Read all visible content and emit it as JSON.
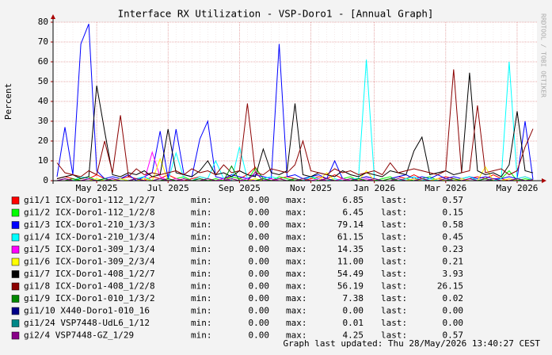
{
  "chart_data": {
    "type": "line",
    "title": "Interface RX Utilization - VSP-Doro1 - [Annual Graph]",
    "y_label": "Percent",
    "watermark": "RRDTOOL / TOBI OETIKER",
    "footer": "Graph last updated: Thu 28/May/2026 13:40:27 CEST",
    "stat_labels": {
      "min": "min:",
      "max": "max:",
      "last": "last:"
    },
    "ylim": [
      0,
      80
    ],
    "yticks": [
      0,
      10,
      20,
      30,
      40,
      50,
      60,
      70,
      80
    ],
    "grid": true,
    "categories": [
      null,
      null,
      null,
      null,
      null,
      "May 2025",
      null,
      null,
      null,
      null,
      null,
      null,
      null,
      null,
      "Jul 2025",
      null,
      null,
      null,
      null,
      null,
      null,
      null,
      null,
      "Sep 2025",
      null,
      null,
      null,
      null,
      null,
      null,
      null,
      null,
      "Nov 2025",
      null,
      null,
      null,
      null,
      null,
      null,
      null,
      "Jan 2026",
      null,
      null,
      null,
      null,
      null,
      null,
      null,
      null,
      "Mar 2026",
      null,
      null,
      null,
      null,
      null,
      null,
      null,
      null,
      "May 2026",
      null,
      null
    ],
    "series": [
      {
        "name": "gi1/1 ICX-Doro1-112_1/2/7",
        "color": "#ff0000",
        "min": "0.00",
        "max": "6.85",
        "last": "0.57",
        "values": [
          1,
          2,
          1,
          0,
          1,
          3,
          1,
          0,
          1,
          2,
          1,
          0,
          2,
          1,
          3,
          1,
          0,
          1,
          2,
          1,
          0,
          1,
          2,
          1,
          3,
          6.85,
          1,
          0,
          1,
          2,
          1,
          0,
          1,
          2,
          1,
          3,
          1,
          0,
          1,
          2,
          1,
          0,
          1,
          2,
          1,
          3,
          1,
          0,
          1,
          2,
          1,
          0,
          1,
          2,
          1,
          3,
          1,
          0,
          1,
          2,
          0.57
        ]
      },
      {
        "name": "gi1/2 ICX-Doro1-112_1/2/8",
        "color": "#00ff00",
        "min": "0.00",
        "max": "6.45",
        "last": "0.15",
        "values": [
          0,
          1,
          0,
          1,
          2,
          0,
          1,
          0,
          1,
          0,
          1,
          2,
          0,
          1,
          0,
          1,
          2,
          0,
          1,
          0,
          1,
          0,
          2,
          1,
          0,
          6.45,
          1,
          0,
          2,
          1,
          0,
          1,
          2,
          0,
          1,
          0,
          1,
          2,
          0,
          1,
          0,
          1,
          2,
          0,
          1,
          0,
          1,
          2,
          0,
          1,
          0,
          1,
          2,
          0,
          1,
          0,
          1,
          5,
          0,
          1,
          0.15
        ]
      },
      {
        "name": "gi1/3 ICX-Doro1-210_1/3/3",
        "color": "#0000ff",
        "min": "0.00",
        "max": "79.14",
        "last": "0.58",
        "values": [
          2,
          27,
          3,
          69,
          79.14,
          5,
          1,
          2,
          1,
          3,
          0,
          2,
          4,
          25,
          1,
          26,
          3,
          2,
          21,
          30,
          2,
          1,
          3,
          2,
          1,
          3,
          2,
          1,
          69,
          2,
          3,
          1,
          2,
          3,
          1,
          10,
          1,
          0,
          1,
          2,
          1,
          0,
          1,
          2,
          3,
          1,
          2,
          1,
          3,
          1,
          2,
          1,
          2,
          1,
          2,
          1,
          1,
          2,
          1,
          30,
          0.58
        ]
      },
      {
        "name": "gi1/4 ICX-Doro1-210_1/3/4",
        "color": "#00ffff",
        "min": "0.00",
        "max": "61.15",
        "last": "0.45",
        "values": [
          0,
          1,
          0,
          2,
          1,
          0,
          1,
          0,
          1,
          0,
          1,
          2,
          0,
          1,
          0,
          14,
          1,
          0,
          2,
          1,
          10,
          1,
          0,
          17,
          1,
          0,
          1,
          2,
          1,
          0,
          1,
          0,
          2,
          1,
          0,
          1,
          0,
          1,
          1,
          61.15,
          1,
          0,
          1,
          0,
          1,
          2,
          0,
          1,
          0,
          1,
          0,
          1,
          2,
          0,
          1,
          0,
          1,
          60,
          1,
          2,
          0.45
        ]
      },
      {
        "name": "gi1/5 ICX-Doro1-309_1/3/4",
        "color": "#ff00ff",
        "min": "0.00",
        "max": "14.35",
        "last": "0.23",
        "values": [
          0,
          1,
          0,
          0,
          1,
          0,
          0,
          1,
          0,
          0,
          1,
          0,
          14.35,
          2,
          0,
          1,
          0,
          0,
          1,
          0,
          0,
          1,
          0,
          0,
          1,
          0,
          0,
          1,
          0,
          0,
          1,
          0,
          0,
          1,
          0,
          0,
          1,
          0,
          0,
          1,
          0,
          0,
          1,
          0,
          0,
          1,
          0,
          0,
          1,
          0,
          0,
          1,
          0,
          0,
          1,
          0,
          0,
          1,
          0,
          0,
          0.23
        ]
      },
      {
        "name": "gi1/6 ICX-Doro1-309_2/3/4",
        "color": "#ffff00",
        "min": "0.00",
        "max": "11.00",
        "last": "0.21",
        "values": [
          0,
          0,
          1,
          0,
          0,
          1,
          0,
          0,
          1,
          0,
          0,
          1,
          0,
          11,
          0,
          0,
          1,
          0,
          0,
          1,
          0,
          0,
          1,
          0,
          0,
          1,
          0,
          0,
          1,
          0,
          0,
          1,
          0,
          0,
          4,
          0,
          0,
          1,
          0,
          5,
          0,
          0,
          1,
          0,
          0,
          1,
          0,
          0,
          1,
          0,
          0,
          1,
          0,
          0,
          7,
          0,
          0,
          1,
          0,
          0,
          0.21
        ]
      },
      {
        "name": "gi1/7 ICX-Doro1-408_1/2/7",
        "color": "#000000",
        "min": "0.00",
        "max": "54.49",
        "last": "3.93",
        "values": [
          1,
          2,
          3,
          1,
          2,
          48,
          25,
          3,
          2,
          4,
          3,
          5,
          2,
          3,
          26,
          4,
          3,
          2,
          5,
          10,
          3,
          4,
          2,
          5,
          3,
          2,
          16,
          4,
          3,
          5,
          39,
          3,
          2,
          4,
          3,
          2,
          5,
          3,
          2,
          4,
          3,
          2,
          5,
          4,
          3,
          15,
          22,
          3,
          4,
          5,
          3,
          4,
          54.49,
          5,
          3,
          4,
          2,
          8,
          35,
          5,
          3.93
        ]
      },
      {
        "name": "gi1/8 ICX-Doro1-408_1/2/8",
        "color": "#8b0000",
        "min": "0.00",
        "max": "56.19",
        "last": "26.15",
        "values": [
          9,
          4,
          3,
          2,
          5,
          3,
          20,
          4,
          33,
          2,
          6,
          3,
          4,
          3,
          4,
          5,
          3,
          6,
          4,
          5,
          3,
          8,
          4,
          5,
          39,
          4,
          3,
          6,
          5,
          4,
          8,
          20,
          5,
          4,
          3,
          6,
          4,
          5,
          3,
          4,
          5,
          3,
          9,
          4,
          5,
          6,
          5,
          4,
          3,
          5,
          56.19,
          4,
          5,
          38,
          4,
          5,
          6,
          3,
          5,
          17,
          26.15
        ]
      },
      {
        "name": "gi1/9 ICX-Doro1-010_1/3/2",
        "color": "#008800",
        "min": "0.00",
        "max": "7.38",
        "last": "0.02",
        "values": [
          0,
          0,
          1,
          0,
          0,
          0,
          1,
          0,
          0,
          0,
          1,
          0,
          0,
          0,
          1,
          0,
          0,
          0,
          1,
          0,
          0,
          0,
          7.38,
          0,
          0,
          0,
          1,
          0,
          0,
          0,
          1,
          0,
          0,
          0,
          1,
          0,
          0,
          0,
          1,
          0,
          0,
          0,
          1,
          0,
          0,
          0,
          1,
          0,
          0,
          0,
          1,
          0,
          0,
          0,
          1,
          0,
          0,
          0,
          1,
          0,
          0.02
        ]
      },
      {
        "name": "gi1/10 X440-Doro1-010_16",
        "color": "#000088",
        "min": "0.00",
        "max": "0.00",
        "last": "0.00",
        "values": [
          0,
          0,
          0,
          0,
          0,
          0,
          0,
          0,
          0,
          0,
          0,
          0,
          0,
          0,
          0,
          0,
          0,
          0,
          0,
          0,
          0,
          0,
          0,
          0,
          0,
          0,
          0,
          0,
          0,
          0,
          0,
          0,
          0,
          0,
          0,
          0,
          0,
          0,
          0,
          0,
          0,
          0,
          0,
          0,
          0,
          0,
          0,
          0,
          0,
          0,
          0,
          0,
          0,
          0,
          0,
          0,
          0,
          0,
          0,
          0,
          0
        ]
      },
      {
        "name": "gi1/24 VSP7448-UdL6_1/12",
        "color": "#008888",
        "min": "0.00",
        "max": "0.01",
        "last": "0.00",
        "values": [
          0,
          0,
          0,
          0,
          0,
          0,
          0,
          0,
          0,
          0,
          0,
          0,
          0,
          0,
          0,
          0,
          0,
          0,
          0,
          0,
          0,
          0,
          0,
          0,
          0,
          0,
          0,
          0,
          0,
          0,
          0.01,
          0,
          0,
          0,
          0,
          0,
          0,
          0,
          0,
          0,
          0,
          0,
          0,
          0,
          0,
          0,
          0,
          0,
          0,
          0,
          0,
          0,
          0,
          0,
          0,
          0,
          0,
          0,
          0,
          0,
          0
        ]
      },
      {
        "name": "gi2/4 VSP7448-GZ_1/29",
        "color": "#880088",
        "min": "0.00",
        "max": "4.25",
        "last": "0.57",
        "values": [
          0,
          1,
          0,
          0,
          1,
          0,
          0,
          1,
          0,
          0,
          1,
          0,
          0,
          1,
          0,
          0,
          1,
          0,
          0,
          1,
          0,
          0,
          1,
          0,
          0,
          4.25,
          0,
          0,
          1,
          0,
          0,
          1,
          0,
          0,
          1,
          0,
          0,
          1,
          0,
          0,
          1,
          0,
          0,
          1,
          0,
          0,
          1,
          0,
          0,
          1,
          0,
          0,
          1,
          0,
          0,
          1,
          0,
          0,
          1,
          0,
          0.57
        ]
      }
    ]
  }
}
